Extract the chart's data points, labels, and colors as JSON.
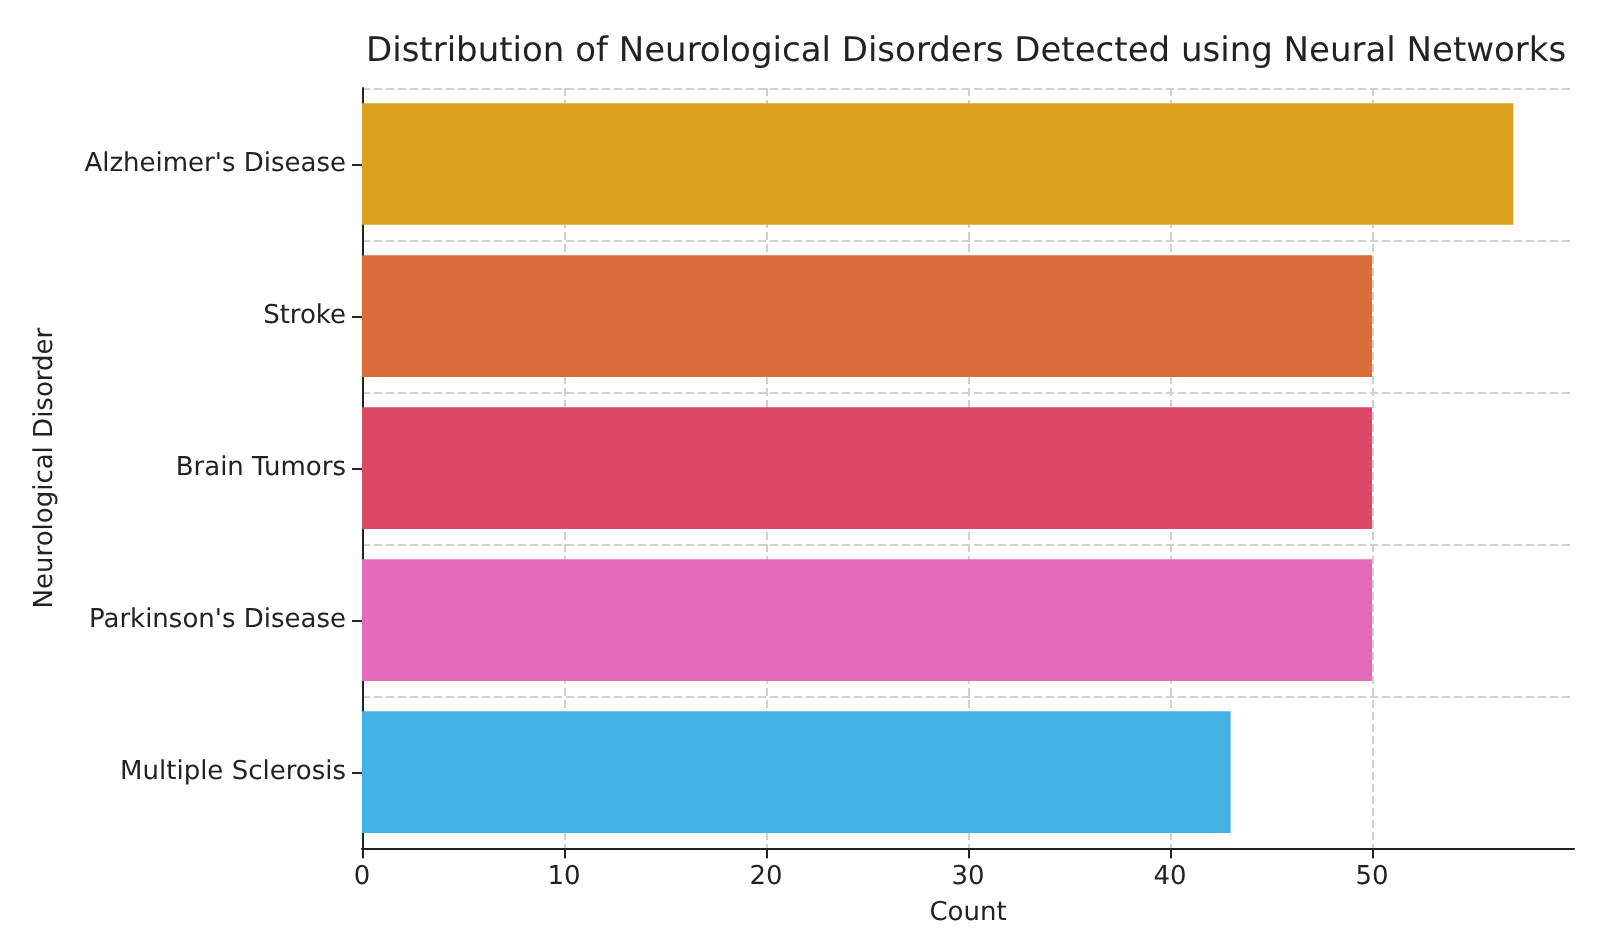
{
  "chart_data": {
    "type": "bar",
    "orientation": "horizontal",
    "title": "Distribution of Neurological Disorders Detected using Neural Networks",
    "xlabel": "Count",
    "ylabel": "Neurological Disorder",
    "categories": [
      "Alzheimer's Disease",
      "Stroke",
      "Brain Tumors",
      "Parkinson's Disease",
      "Multiple Sclerosis"
    ],
    "values": [
      57,
      50,
      50,
      50,
      43
    ],
    "colors": [
      "#dba11f",
      "#d96e3a",
      "#dd4766",
      "#e26bbd",
      "#42b2e2"
    ],
    "xlim": [
      0,
      60
    ],
    "xticks": [
      0,
      10,
      20,
      30,
      40,
      50
    ],
    "grid": true
  }
}
